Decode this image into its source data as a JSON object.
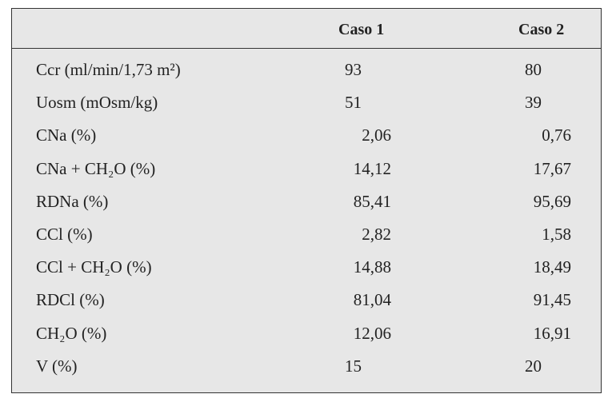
{
  "table": {
    "header": [
      "Caso 1",
      "Caso 2"
    ],
    "rows": [
      [
        "Ccr (ml/min/1,73 m²)",
        "93",
        "80"
      ],
      [
        "Uosm (mOsm/kg)",
        "51",
        "39"
      ],
      [
        "CNa (%)",
        "2,06",
        "0,76"
      ],
      [
        "CNa + CH₂O (%)",
        "14,12",
        "17,67"
      ],
      [
        "RDNa (%)",
        "85,41",
        "95,69"
      ],
      [
        "CCl (%)",
        "2,82",
        "1,58"
      ],
      [
        "CCl + CH₂O (%)",
        "14,88",
        "18,49"
      ],
      [
        "RDCl (%)",
        "81,04",
        "91,45"
      ],
      [
        "CH₂O (%)",
        "12,06",
        "16,91"
      ],
      [
        "V (%)",
        "15",
        "20"
      ]
    ]
  }
}
